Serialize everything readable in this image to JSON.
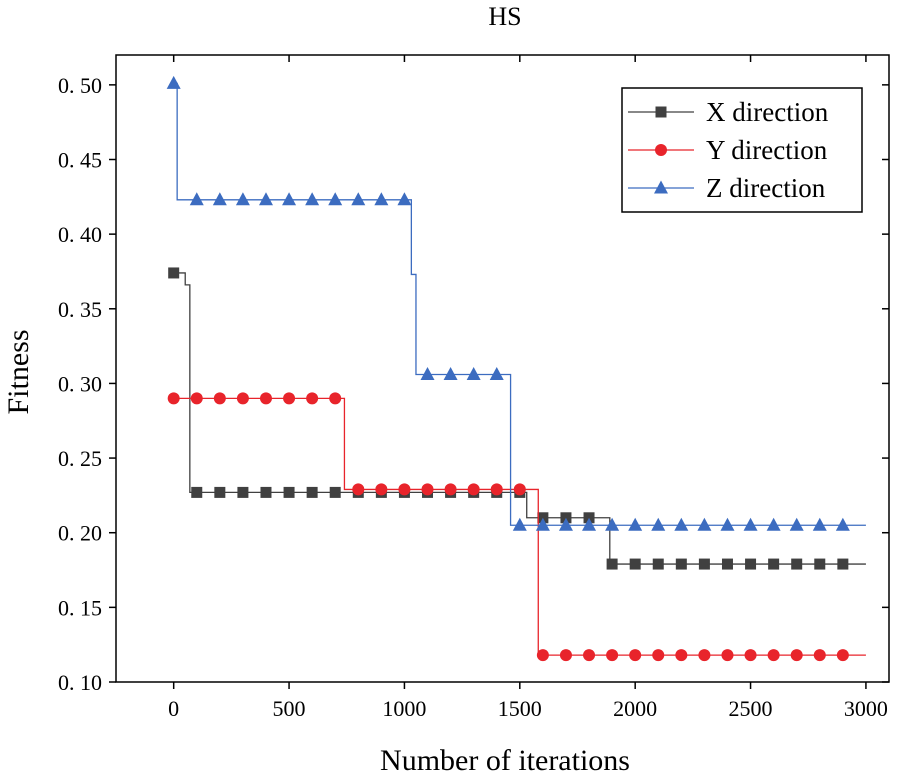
{
  "chart_data": {
    "type": "line",
    "title": "HS",
    "xlabel": "Number of iterations",
    "ylabel": "Fitness",
    "xlim": [
      -250,
      3100
    ],
    "ylim": [
      0.1,
      0.52
    ],
    "xticks": [
      0,
      500,
      1000,
      1500,
      2000,
      2500,
      3000
    ],
    "yticks": [
      0.1,
      0.15,
      0.2,
      0.25,
      0.3,
      0.35,
      0.4,
      0.45,
      0.5
    ],
    "xtick_labels": [
      "0",
      "500",
      "1000",
      "1500",
      "2000",
      "2500",
      "3000"
    ],
    "ytick_labels": [
      "0. 10",
      "0. 15",
      "0. 20",
      "0. 25",
      "0. 30",
      "0. 35",
      "0. 40",
      "0. 45",
      "0. 50"
    ],
    "grid": false,
    "legend_position": "top-right",
    "series": [
      {
        "name": "X direction",
        "color": "#404040",
        "marker": "square",
        "steps": [
          [
            0,
            0.374
          ],
          [
            50,
            0.366
          ],
          [
            70,
            0.227
          ],
          [
            1530,
            0.21
          ],
          [
            1890,
            0.179
          ],
          [
            3000,
            0.179
          ]
        ],
        "markers": [
          [
            0,
            0.374
          ],
          [
            100,
            0.227
          ],
          [
            200,
            0.227
          ],
          [
            300,
            0.227
          ],
          [
            400,
            0.227
          ],
          [
            500,
            0.227
          ],
          [
            600,
            0.227
          ],
          [
            700,
            0.227
          ],
          [
            800,
            0.227
          ],
          [
            900,
            0.227
          ],
          [
            1000,
            0.227
          ],
          [
            1100,
            0.227
          ],
          [
            1200,
            0.227
          ],
          [
            1300,
            0.227
          ],
          [
            1400,
            0.227
          ],
          [
            1500,
            0.227
          ],
          [
            1600,
            0.21
          ],
          [
            1700,
            0.21
          ],
          [
            1800,
            0.21
          ],
          [
            1900,
            0.179
          ],
          [
            2000,
            0.179
          ],
          [
            2100,
            0.179
          ],
          [
            2200,
            0.179
          ],
          [
            2300,
            0.179
          ],
          [
            2400,
            0.179
          ],
          [
            2500,
            0.179
          ],
          [
            2600,
            0.179
          ],
          [
            2700,
            0.179
          ],
          [
            2800,
            0.179
          ],
          [
            2900,
            0.179
          ]
        ]
      },
      {
        "name": "Y direction",
        "color": "#e8242b",
        "marker": "circle",
        "steps": [
          [
            0,
            0.29
          ],
          [
            740,
            0.229
          ],
          [
            1580,
            0.118
          ],
          [
            3000,
            0.118
          ]
        ],
        "markers": [
          [
            0,
            0.29
          ],
          [
            100,
            0.29
          ],
          [
            200,
            0.29
          ],
          [
            300,
            0.29
          ],
          [
            400,
            0.29
          ],
          [
            500,
            0.29
          ],
          [
            600,
            0.29
          ],
          [
            700,
            0.29
          ],
          [
            800,
            0.229
          ],
          [
            900,
            0.229
          ],
          [
            1000,
            0.229
          ],
          [
            1100,
            0.229
          ],
          [
            1200,
            0.229
          ],
          [
            1300,
            0.229
          ],
          [
            1400,
            0.229
          ],
          [
            1500,
            0.229
          ],
          [
            1600,
            0.118
          ],
          [
            1700,
            0.118
          ],
          [
            1800,
            0.118
          ],
          [
            1900,
            0.118
          ],
          [
            2000,
            0.118
          ],
          [
            2100,
            0.118
          ],
          [
            2200,
            0.118
          ],
          [
            2300,
            0.118
          ],
          [
            2400,
            0.118
          ],
          [
            2500,
            0.118
          ],
          [
            2600,
            0.118
          ],
          [
            2700,
            0.118
          ],
          [
            2800,
            0.118
          ],
          [
            2900,
            0.118
          ]
        ]
      },
      {
        "name": "Z direction",
        "color": "#3c6cc0",
        "marker": "triangle",
        "steps": [
          [
            0,
            0.501
          ],
          [
            15,
            0.423
          ],
          [
            1030,
            0.373
          ],
          [
            1050,
            0.306
          ],
          [
            1460,
            0.205
          ],
          [
            3000,
            0.205
          ]
        ],
        "markers": [
          [
            0,
            0.501
          ],
          [
            100,
            0.423
          ],
          [
            200,
            0.423
          ],
          [
            300,
            0.423
          ],
          [
            400,
            0.423
          ],
          [
            500,
            0.423
          ],
          [
            600,
            0.423
          ],
          [
            700,
            0.423
          ],
          [
            800,
            0.423
          ],
          [
            900,
            0.423
          ],
          [
            1000,
            0.423
          ],
          [
            1100,
            0.306
          ],
          [
            1200,
            0.306
          ],
          [
            1300,
            0.306
          ],
          [
            1400,
            0.306
          ],
          [
            1500,
            0.205
          ],
          [
            1600,
            0.205
          ],
          [
            1700,
            0.205
          ],
          [
            1800,
            0.205
          ],
          [
            1900,
            0.205
          ],
          [
            2000,
            0.205
          ],
          [
            2100,
            0.205
          ],
          [
            2200,
            0.205
          ],
          [
            2300,
            0.205
          ],
          [
            2400,
            0.205
          ],
          [
            2500,
            0.205
          ],
          [
            2600,
            0.205
          ],
          [
            2700,
            0.205
          ],
          [
            2800,
            0.205
          ],
          [
            2900,
            0.205
          ]
        ]
      }
    ]
  }
}
